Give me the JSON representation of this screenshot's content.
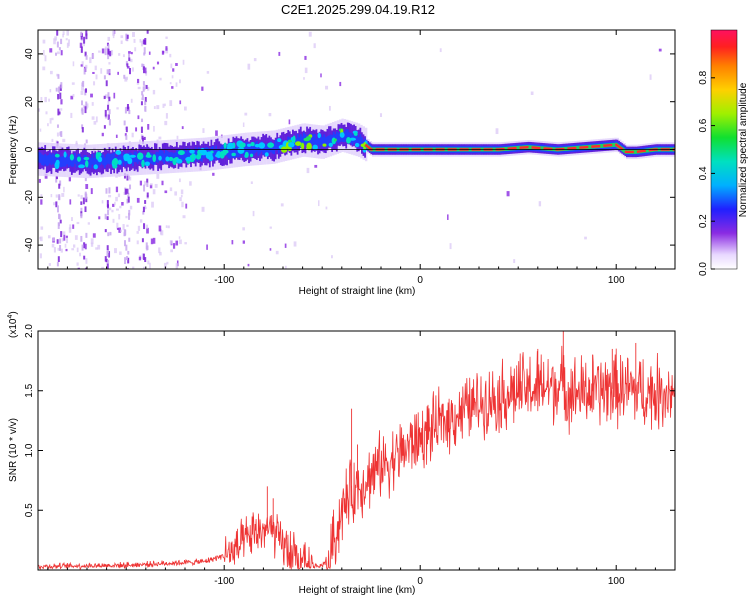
{
  "title": "C2E1.2025.299.04.19.R12",
  "chart_data": [
    {
      "type": "heatmap",
      "name": "spectrogram",
      "xlabel": "Height of straight line (km)",
      "ylabel": "Frequency (Hz)",
      "xlim": [
        -195,
        130
      ],
      "ylim": [
        -50,
        50
      ],
      "x_ticks": [
        "-100",
        "0",
        "100"
      ],
      "y_ticks": [
        "-40",
        "-20",
        "0",
        "20",
        "40"
      ],
      "ridge": {
        "x": [
          -195,
          -170,
          -150,
          -130,
          -110,
          -90,
          -75,
          -60,
          -50,
          -40,
          -32,
          -28,
          -25,
          0,
          40,
          55,
          70,
          85,
          100,
          105,
          110,
          120,
          130
        ],
        "freq": [
          -4,
          -5,
          -4,
          -3,
          -2,
          0,
          1,
          4,
          3,
          6,
          4,
          2,
          0,
          0,
          0,
          1,
          0,
          1,
          2,
          -1,
          -1,
          0,
          0
        ]
      },
      "colorbar": {
        "label": "Normalized spectral amplitude",
        "range": [
          0,
          1
        ],
        "ticks": [
          "0.0",
          "0.2",
          "0.4",
          "0.6",
          "0.8"
        ]
      }
    },
    {
      "type": "line",
      "name": "snr",
      "xlabel": "Height of straight line (km)",
      "ylabel": "SNR (10 * v/v)",
      "multiplier": "(x10",
      "exponent": "4",
      "multiplier_close": ")",
      "xlim": [
        -195,
        130
      ],
      "ylim": [
        0,
        2.0
      ],
      "x_ticks": [
        "-100",
        "0",
        "100"
      ],
      "y_ticks": [
        "0.5",
        "1.0",
        "1.5",
        "2.0"
      ],
      "color": "#ee3333",
      "envelope": {
        "x": [
          -195,
          -150,
          -110,
          -95,
          -85,
          -78,
          -72,
          -65,
          -58,
          -52,
          -48,
          -43,
          -40,
          -35,
          -30,
          -25,
          -20,
          -15,
          -10,
          -5,
          0,
          10,
          20,
          30,
          40,
          50,
          60,
          70,
          80,
          90,
          100,
          110,
          120,
          130
        ],
        "y": [
          0.03,
          0.04,
          0.07,
          0.15,
          0.3,
          0.35,
          0.25,
          0.12,
          0.05,
          0.03,
          0.06,
          0.3,
          0.5,
          0.65,
          0.72,
          0.8,
          0.88,
          0.92,
          0.98,
          1.05,
          1.1,
          1.22,
          1.32,
          1.4,
          1.45,
          1.5,
          1.52,
          1.55,
          1.48,
          1.5,
          1.52,
          1.5,
          1.48,
          1.5
        ]
      },
      "spikes": [
        {
          "x": -78,
          "y": 0.7
        },
        {
          "x": -75,
          "y": 0.6
        },
        {
          "x": -35,
          "y": 1.35
        },
        {
          "x": -32,
          "y": 1.05
        },
        {
          "x": 73,
          "y": 2.0
        },
        {
          "x": 60,
          "y": 1.85
        },
        {
          "x": 98,
          "y": 1.85
        },
        {
          "x": 110,
          "y": 1.9
        },
        {
          "x": 88,
          "y": 1.8
        }
      ]
    }
  ]
}
